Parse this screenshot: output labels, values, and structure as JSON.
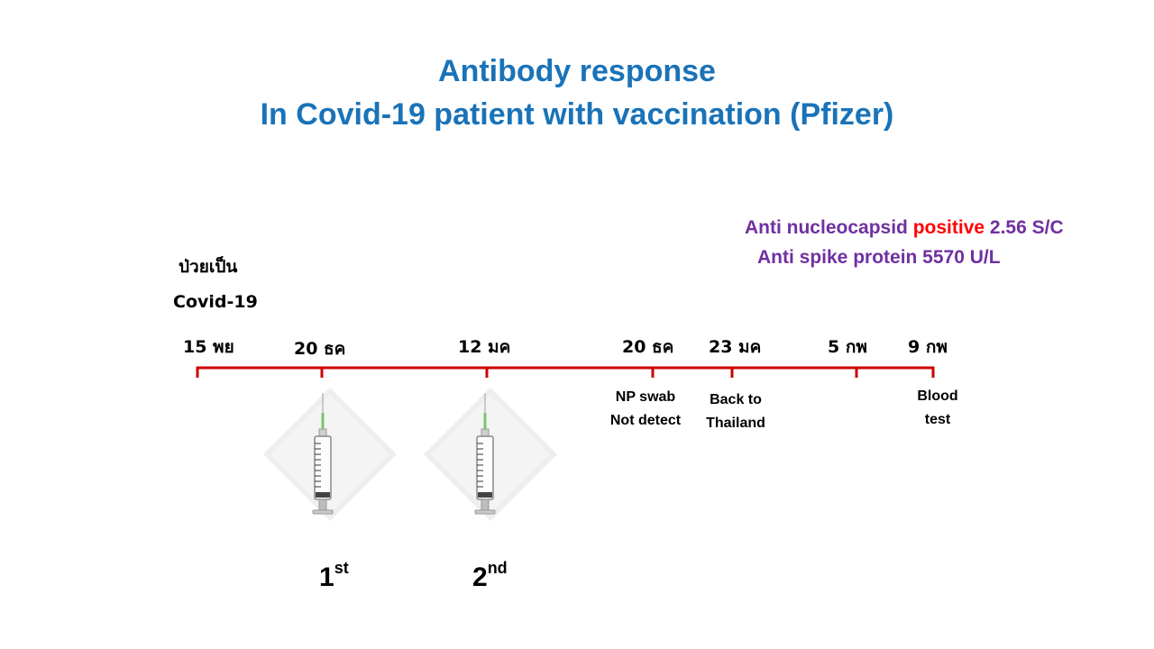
{
  "title": {
    "line1": "Antibody response",
    "line2": "In Covid-19 patient with vaccination (Pfizer)"
  },
  "antibody": {
    "nucleocapsid_label": "Anti nucleocapsid",
    "nucleocapsid_status": "positive",
    "nucleocapsid_value": "2.56 S/C",
    "spike_text": "Anti spike protein 5570 U/L"
  },
  "onset": {
    "line1": "ป่วยเป็น",
    "line2": "Covid-19"
  },
  "timeline": {
    "color": "#cc0000",
    "dates": [
      "15  พย",
      "20 ธค",
      "12 มค",
      "20 ธค",
      "23 มค",
      "5 กพ",
      "9 กพ"
    ]
  },
  "events": {
    "np_swab": [
      "NP swab",
      "Not detect"
    ],
    "back": [
      "Back to",
      "Thailand"
    ],
    "blood": [
      "Blood",
      "test"
    ]
  },
  "doses": [
    {
      "num": "1",
      "suffix": "st"
    },
    {
      "num": "2",
      "suffix": "nd"
    }
  ],
  "icons": {
    "syringe1": "syringe-icon",
    "syringe2": "syringe-icon"
  }
}
